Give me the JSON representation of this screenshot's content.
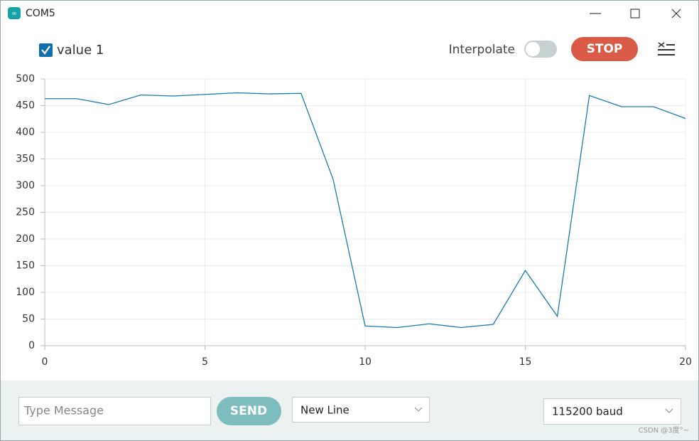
{
  "window": {
    "title": "COM5"
  },
  "toolbar": {
    "interpolate_label": "Interpolate",
    "stop_button": "STOP"
  },
  "footer": {
    "message_placeholder": "Type Message",
    "send_button": "SEND",
    "line_ending": "New Line",
    "baud_rate": "115200 baud"
  },
  "watermark": "CSDN @3度°~",
  "chart_data": {
    "type": "line",
    "x": [
      0,
      1,
      2,
      3,
      4,
      5,
      6,
      7,
      8,
      9,
      10,
      11,
      12,
      13,
      14,
      15,
      16,
      17,
      18,
      19,
      20
    ],
    "series": [
      {
        "name": "value 1",
        "color": "#1b7bb0",
        "values": [
          463,
          463,
          452,
          470,
          468,
          471,
          474,
          472,
          473,
          312,
          37,
          34,
          41,
          34,
          40,
          141,
          55,
          469,
          448,
          448,
          426
        ]
      }
    ],
    "xlim": [
      0,
      20
    ],
    "xticks": [
      0,
      5,
      10,
      15,
      20
    ],
    "ylim": [
      0,
      500
    ],
    "yticks": [
      0,
      50,
      100,
      150,
      200,
      250,
      300,
      350,
      400,
      450,
      500
    ],
    "grid": true
  }
}
